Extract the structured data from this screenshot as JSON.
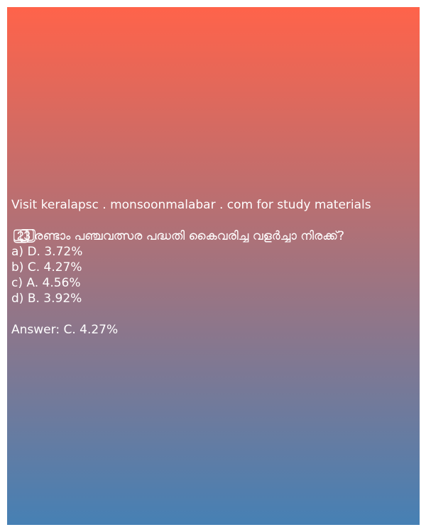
{
  "site_line": "Visit keralapsc . monsoonmalabar . com for study materials",
  "question": "2⃣3⃣ രണ്ടാം പഞ്ചവത്സര പദ്ധതി കൈവരിച്ച വളർച്ചാ നിരക്ക്?",
  "options": [
    "a) D. 3.72%",
    "b) C. 4.27%",
    "c) A. 4.56%",
    "d) B. 3.92%"
  ],
  "answer": "Answer: C. 4.27%",
  "colors": {
    "gradient_top": "#ff634a",
    "gradient_mid": "#a3737e",
    "gradient_bottom": "#4680b4",
    "text": "#ffffff"
  }
}
